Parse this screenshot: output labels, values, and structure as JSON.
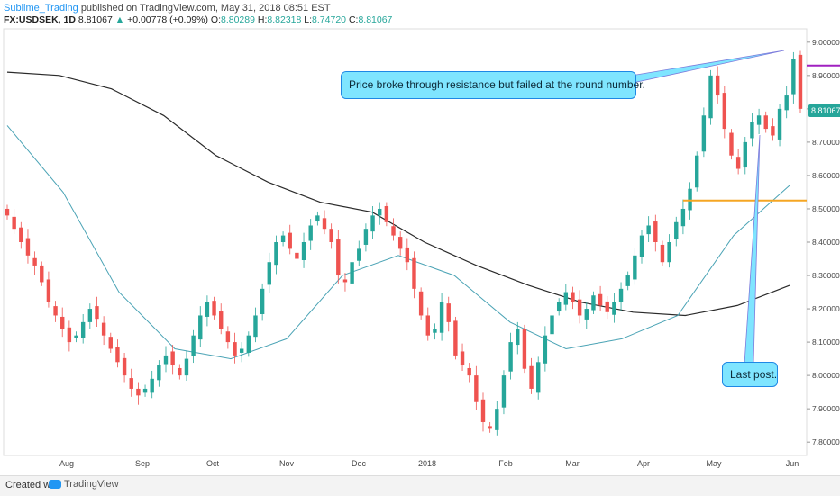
{
  "header": {
    "author": "Sublime_Trading",
    "published_text": "published on TradingView.com, May 31, 2018 08:51 EST",
    "symbol": "FX:USDSEK, 1D",
    "last": "8.81067",
    "change_arrow": "▲",
    "change": "+0.00778 (+0.09%)",
    "o_label": "O:",
    "o_val": "8.80289",
    "h_label": "H:",
    "h_val": "8.82318",
    "l_label": "L:",
    "l_val": "8.74720",
    "c_label": "C:",
    "c_val": "8.81067"
  },
  "footer": {
    "created_with": "Created with",
    "brand": "TradingView"
  },
  "annotations": {
    "resistance_note": "Price broke through resistance but failed at the round number.",
    "last_post": "Last post."
  },
  "price_tag": "8.81067",
  "colors": {
    "up": "#26a69a",
    "down": "#ef5350",
    "ma_long": "#2a2a2a",
    "ma_short": "#4aa3b5",
    "resistance": "#f5a623",
    "round_number": "#a020c0",
    "callout_bg": "#7fe5ff"
  },
  "chart_data": {
    "type": "candlestick",
    "y_ticks": [
      "9.00000",
      "8.90000",
      "8.80000",
      "8.70000",
      "8.60000",
      "8.50000",
      "8.40000",
      "8.30000",
      "8.20000",
      "8.10000",
      "8.00000",
      "7.90000",
      "7.80000"
    ],
    "ylim": [
      7.76,
      9.04
    ],
    "x_ticks": [
      "Aug",
      "Sep",
      "Oct",
      "Nov",
      "Dec",
      "2018",
      "Feb",
      "Mar",
      "Apr",
      "May",
      "Jun"
    ],
    "horizontal_lines": [
      {
        "name": "resistance",
        "value": 8.525,
        "from_index": 98,
        "to_index": 238
      },
      {
        "name": "round number",
        "value": 8.93,
        "from_index": 208,
        "to_index": 238
      }
    ],
    "series": [
      {
        "name": "Candles",
        "approx_close": [
          8.48,
          8.44,
          8.4,
          8.36,
          8.33,
          8.28,
          8.22,
          8.18,
          8.14,
          8.1,
          8.12,
          8.16,
          8.2,
          8.17,
          8.12,
          8.08,
          8.04,
          8.0,
          7.96,
          7.94,
          7.96,
          7.99,
          8.03,
          8.06,
          8.03,
          8.0,
          8.05,
          8.12,
          8.18,
          8.22,
          8.18,
          8.14,
          8.1,
          8.06,
          8.08,
          8.12,
          8.18,
          8.26,
          8.34,
          8.4,
          8.42,
          8.38,
          8.35,
          8.4,
          8.45,
          8.48,
          8.44,
          8.4,
          8.3,
          8.28,
          8.34,
          8.38,
          8.44,
          8.48,
          8.5,
          8.46,
          8.42,
          8.38,
          8.34,
          8.26,
          8.18,
          8.12,
          8.14,
          8.22,
          8.16,
          8.06,
          8.03,
          8.0,
          7.92,
          7.86,
          7.84,
          7.9,
          8.0,
          8.1,
          8.14,
          8.02,
          7.96,
          8.04,
          8.12,
          8.18,
          8.22,
          8.25,
          8.22,
          8.18,
          8.2,
          8.24,
          8.21,
          8.19,
          8.22,
          8.26,
          8.3,
          8.36,
          8.42,
          8.45,
          8.4,
          8.34,
          8.4,
          8.46,
          8.5,
          8.56,
          8.66,
          8.78,
          8.9,
          8.84,
          8.74,
          8.66,
          8.62,
          8.7,
          8.76,
          8.78,
          8.74,
          8.72,
          8.8,
          8.84,
          8.95,
          8.8
        ]
      },
      {
        "name": "MA long",
        "approx_values": [
          8.91,
          8.9,
          8.86,
          8.78,
          8.66,
          8.58,
          8.52,
          8.49,
          8.4,
          8.33,
          8.27,
          8.22,
          8.19,
          8.18,
          8.21,
          8.27
        ]
      },
      {
        "name": "MA short",
        "approx_values": [
          8.75,
          8.55,
          8.25,
          8.08,
          8.05,
          8.11,
          8.3,
          8.36,
          8.3,
          8.16,
          8.08,
          8.11,
          8.18,
          8.42,
          8.57
        ]
      }
    ]
  }
}
